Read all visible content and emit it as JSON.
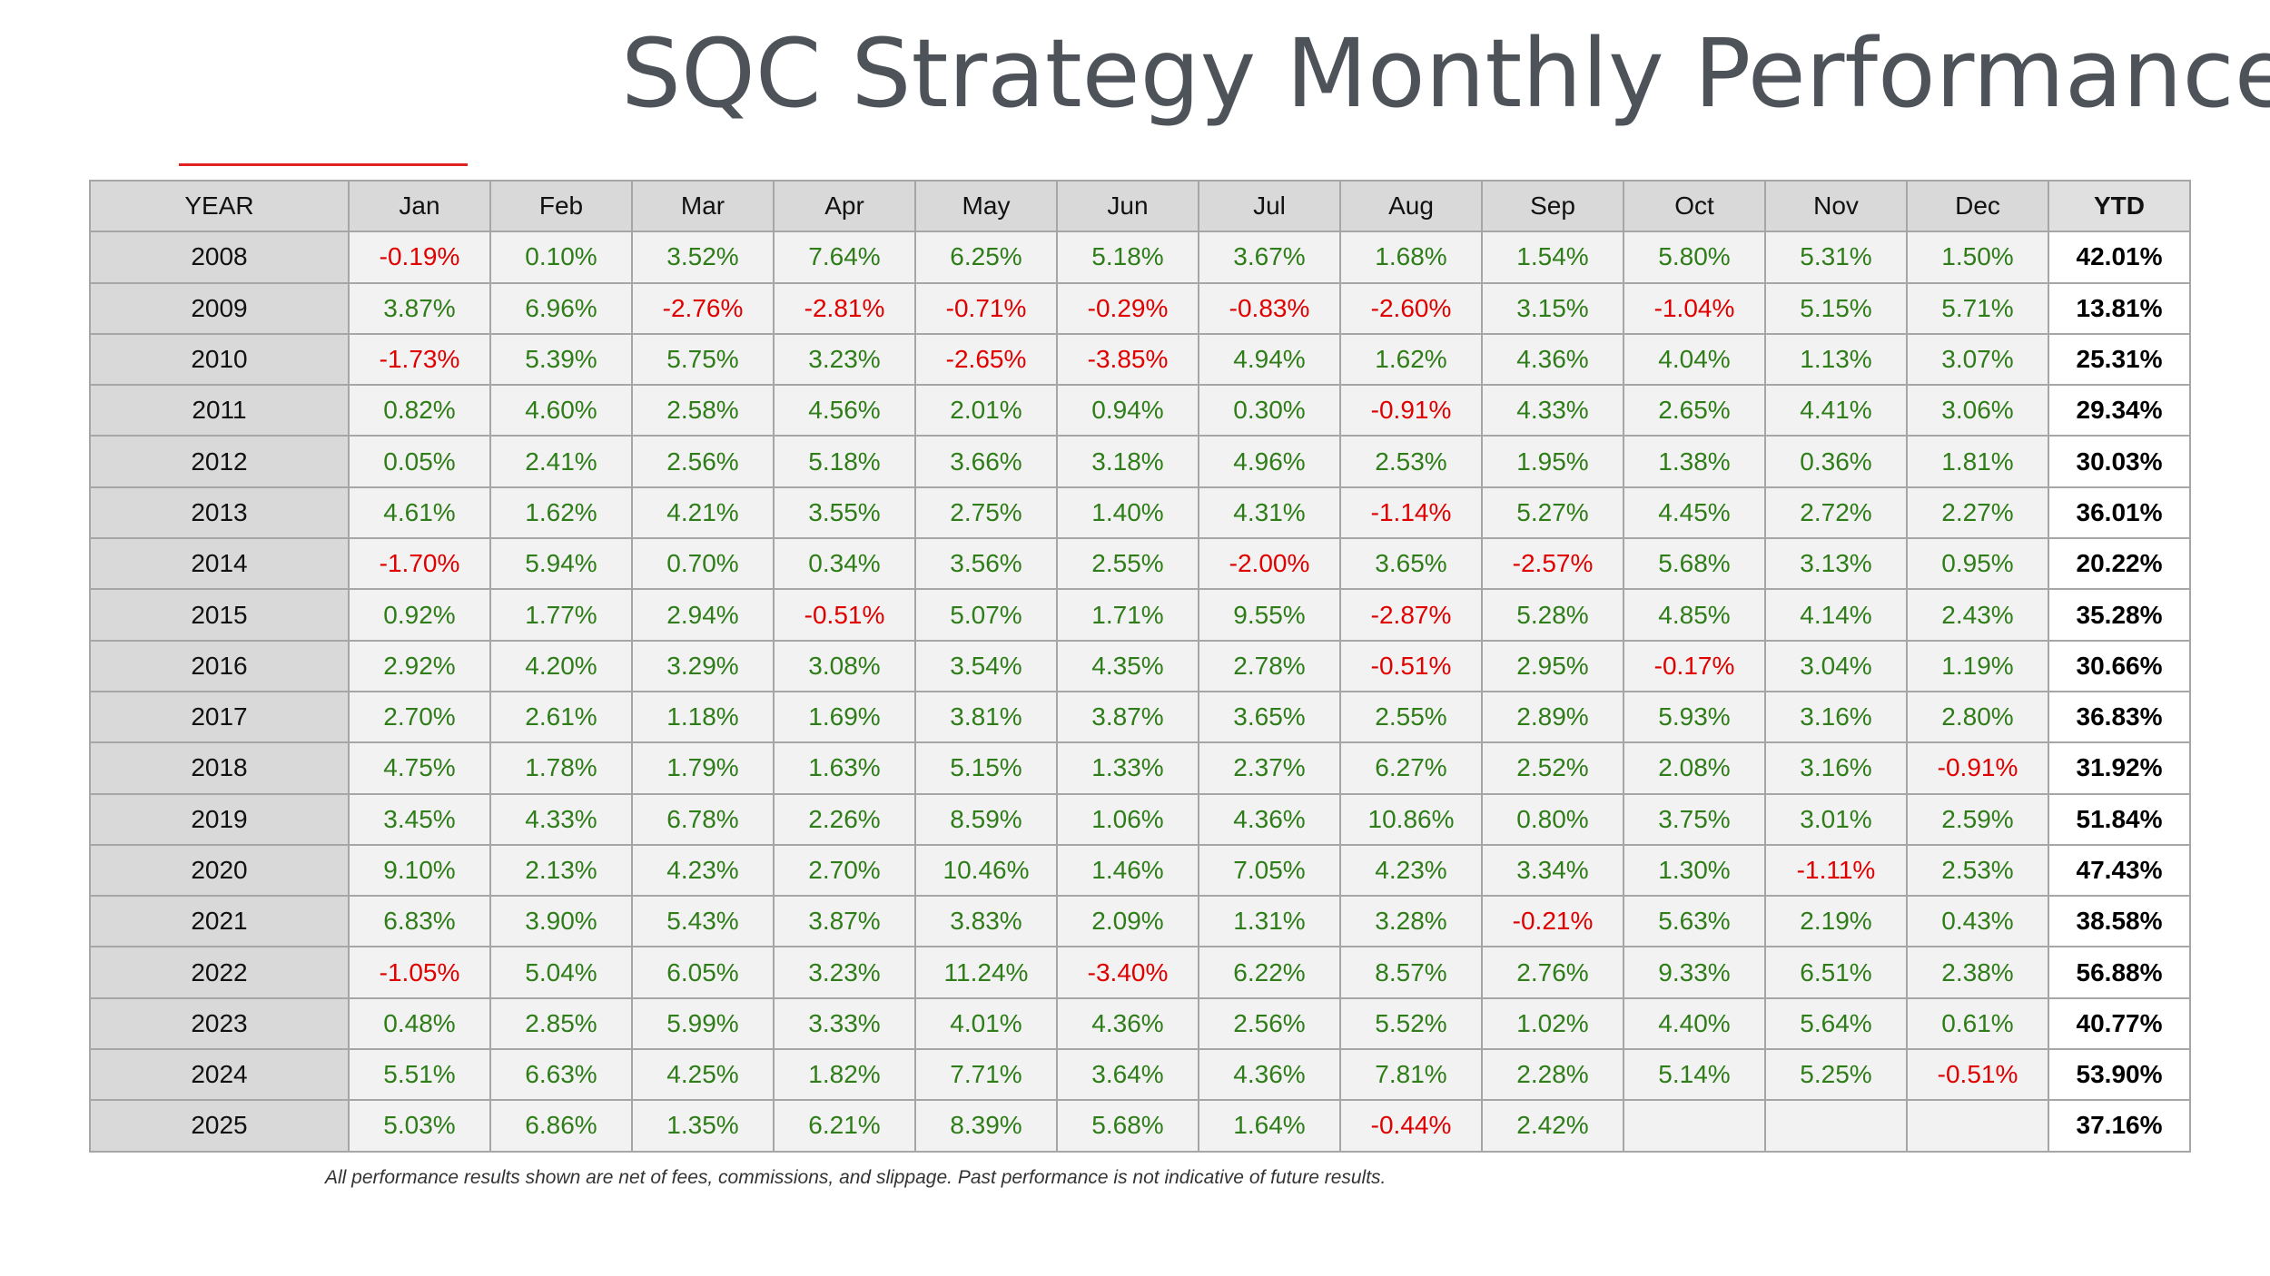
{
  "title": "SQC Strategy Monthly Performance",
  "colors": {
    "positive": "#2e7d18",
    "negative": "#e00000",
    "accent": "#e02222"
  },
  "table": {
    "year_label": "YEAR",
    "months": [
      "Jan",
      "Feb",
      "Mar",
      "Apr",
      "May",
      "Jun",
      "Jul",
      "Aug",
      "Sep",
      "Oct",
      "Nov",
      "Dec"
    ],
    "ytd_label": "YTD",
    "rows": [
      {
        "year": "2008",
        "values": [
          "-0.19%",
          "0.10%",
          "3.52%",
          "7.64%",
          "6.25%",
          "5.18%",
          "3.67%",
          "1.68%",
          "1.54%",
          "5.80%",
          "5.31%",
          "1.50%"
        ],
        "ytd": "42.01%"
      },
      {
        "year": "2009",
        "values": [
          "3.87%",
          "6.96%",
          "-2.76%",
          "-2.81%",
          "-0.71%",
          "-0.29%",
          "-0.83%",
          "-2.60%",
          "3.15%",
          "-1.04%",
          "5.15%",
          "5.71%"
        ],
        "ytd": "13.81%"
      },
      {
        "year": "2010",
        "values": [
          "-1.73%",
          "5.39%",
          "5.75%",
          "3.23%",
          "-2.65%",
          "-3.85%",
          "4.94%",
          "1.62%",
          "4.36%",
          "4.04%",
          "1.13%",
          "3.07%"
        ],
        "ytd": "25.31%"
      },
      {
        "year": "2011",
        "values": [
          "0.82%",
          "4.60%",
          "2.58%",
          "4.56%",
          "2.01%",
          "0.94%",
          "0.30%",
          "-0.91%",
          "4.33%",
          "2.65%",
          "4.41%",
          "3.06%"
        ],
        "ytd": "29.34%"
      },
      {
        "year": "2012",
        "values": [
          "0.05%",
          "2.41%",
          "2.56%",
          "5.18%",
          "3.66%",
          "3.18%",
          "4.96%",
          "2.53%",
          "1.95%",
          "1.38%",
          "0.36%",
          "1.81%"
        ],
        "ytd": "30.03%"
      },
      {
        "year": "2013",
        "values": [
          "4.61%",
          "1.62%",
          "4.21%",
          "3.55%",
          "2.75%",
          "1.40%",
          "4.31%",
          "-1.14%",
          "5.27%",
          "4.45%",
          "2.72%",
          "2.27%"
        ],
        "ytd": "36.01%"
      },
      {
        "year": "2014",
        "values": [
          "-1.70%",
          "5.94%",
          "0.70%",
          "0.34%",
          "3.56%",
          "2.55%",
          "-2.00%",
          "3.65%",
          "-2.57%",
          "5.68%",
          "3.13%",
          "0.95%"
        ],
        "ytd": "20.22%"
      },
      {
        "year": "2015",
        "values": [
          "0.92%",
          "1.77%",
          "2.94%",
          "-0.51%",
          "5.07%",
          "1.71%",
          "9.55%",
          "-2.87%",
          "5.28%",
          "4.85%",
          "4.14%",
          "2.43%"
        ],
        "ytd": "35.28%"
      },
      {
        "year": "2016",
        "values": [
          "2.92%",
          "4.20%",
          "3.29%",
          "3.08%",
          "3.54%",
          "4.35%",
          "2.78%",
          "-0.51%",
          "2.95%",
          "-0.17%",
          "3.04%",
          "1.19%"
        ],
        "ytd": "30.66%"
      },
      {
        "year": "2017",
        "values": [
          "2.70%",
          "2.61%",
          "1.18%",
          "1.69%",
          "3.81%",
          "3.87%",
          "3.65%",
          "2.55%",
          "2.89%",
          "5.93%",
          "3.16%",
          "2.80%"
        ],
        "ytd": "36.83%"
      },
      {
        "year": "2018",
        "values": [
          "4.75%",
          "1.78%",
          "1.79%",
          "1.63%",
          "5.15%",
          "1.33%",
          "2.37%",
          "6.27%",
          "2.52%",
          "2.08%",
          "3.16%",
          "-0.91%"
        ],
        "ytd": "31.92%"
      },
      {
        "year": "2019",
        "values": [
          "3.45%",
          "4.33%",
          "6.78%",
          "2.26%",
          "8.59%",
          "1.06%",
          "4.36%",
          "10.86%",
          "0.80%",
          "3.75%",
          "3.01%",
          "2.59%"
        ],
        "ytd": "51.84%"
      },
      {
        "year": "2020",
        "values": [
          "9.10%",
          "2.13%",
          "4.23%",
          "2.70%",
          "10.46%",
          "1.46%",
          "7.05%",
          "4.23%",
          "3.34%",
          "1.30%",
          "-1.11%",
          "2.53%"
        ],
        "ytd": "47.43%"
      },
      {
        "year": "2021",
        "values": [
          "6.83%",
          "3.90%",
          "5.43%",
          "3.87%",
          "3.83%",
          "2.09%",
          "1.31%",
          "3.28%",
          "-0.21%",
          "5.63%",
          "2.19%",
          "0.43%"
        ],
        "ytd": "38.58%"
      },
      {
        "year": "2022",
        "values": [
          "-1.05%",
          "5.04%",
          "6.05%",
          "3.23%",
          "11.24%",
          "-3.40%",
          "6.22%",
          "8.57%",
          "2.76%",
          "9.33%",
          "6.51%",
          "2.38%"
        ],
        "ytd": "56.88%"
      },
      {
        "year": "2023",
        "values": [
          "0.48%",
          "2.85%",
          "5.99%",
          "3.33%",
          "4.01%",
          "4.36%",
          "2.56%",
          "5.52%",
          "1.02%",
          "4.40%",
          "5.64%",
          "0.61%"
        ],
        "ytd": "40.77%"
      },
      {
        "year": "2024",
        "values": [
          "5.51%",
          "6.63%",
          "4.25%",
          "1.82%",
          "7.71%",
          "3.64%",
          "4.36%",
          "7.81%",
          "2.28%",
          "5.14%",
          "5.25%",
          "-0.51%"
        ],
        "ytd": "53.90%"
      },
      {
        "year": "2025",
        "values": [
          "5.03%",
          "6.86%",
          "1.35%",
          "6.21%",
          "8.39%",
          "5.68%",
          "1.64%",
          "-0.44%",
          "2.42%",
          "",
          "",
          ""
        ],
        "ytd": "37.16%"
      }
    ]
  },
  "disclaimer": "All performance results shown are net of fees, commissions, and slippage. Past performance is not indicative of future results."
}
